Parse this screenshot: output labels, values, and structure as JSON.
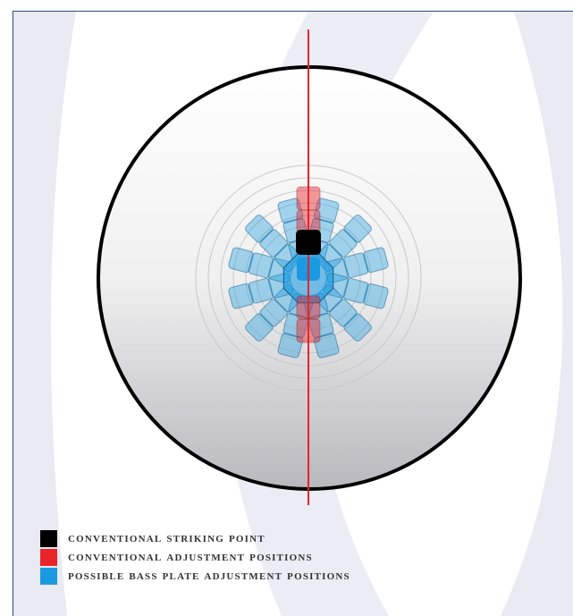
{
  "colors": {
    "conventional_striking": "#000000",
    "conventional_adjustment": "#e8232a",
    "bass_plate_adjustment": "#1a9ae0",
    "frame": "#2c4c7c"
  },
  "legend": {
    "items": [
      {
        "label": "CONVENTIONAL STRIKING POINT",
        "color": "#000000"
      },
      {
        "label": "CONVENTIONAL ADJUSTMENT POSITIONS",
        "color": "#e8232a"
      },
      {
        "label": "POSSIBLE BASS PLATE ADJUSTMENT POSITIONS",
        "color": "#1a9ae0"
      }
    ]
  }
}
